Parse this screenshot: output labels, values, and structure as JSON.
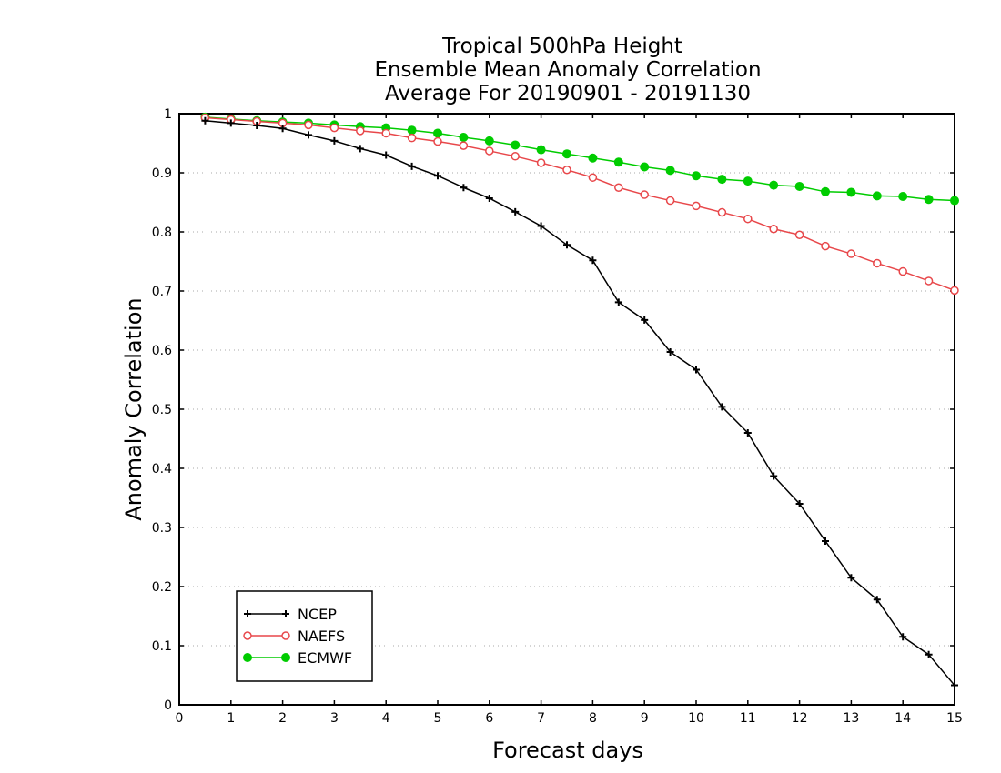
{
  "chart_data": {
    "type": "line",
    "title": [
      "Tropical 500hPa Height",
      "Ensemble Mean Anomaly Correlation",
      "Average For 20190901 - 20191130"
    ],
    "xlabel": "Forecast days",
    "ylabel": "Anomaly Correlation",
    "xlim": [
      0,
      15
    ],
    "ylim": [
      0,
      1
    ],
    "xticks": [
      "0",
      "1",
      "2",
      "3",
      "4",
      "5",
      "6",
      "7",
      "8",
      "9",
      "10",
      "11",
      "12",
      "13",
      "14",
      "15"
    ],
    "yticks": [
      "0",
      "0.1",
      "0.2",
      "0.3",
      "0.4",
      "0.5",
      "0.6",
      "0.7",
      "0.8",
      "0.9",
      "1"
    ],
    "grid": "horizontal dotted",
    "legend_position": "bottom-left",
    "x": [
      0.5,
      1,
      1.5,
      2,
      2.5,
      3,
      3.5,
      4,
      4.5,
      5,
      5.5,
      6,
      6.5,
      7,
      7.5,
      8,
      8.5,
      9,
      9.5,
      10,
      10.5,
      11,
      11.5,
      12,
      12.5,
      13,
      13.5,
      14,
      14.5,
      15
    ],
    "series": [
      {
        "name": "NCEP",
        "color": "#000000",
        "marker": "plus",
        "values": [
          0.988,
          0.984,
          0.98,
          0.975,
          0.964,
          0.954,
          0.941,
          0.93,
          0.911,
          0.895,
          0.875,
          0.857,
          0.834,
          0.81,
          0.778,
          0.752,
          0.681,
          0.651,
          0.597,
          0.567,
          0.504,
          0.46,
          0.387,
          0.34,
          0.277,
          0.215,
          0.178,
          0.115,
          0.085,
          0.033
        ]
      },
      {
        "name": "NAEFS",
        "color": "#e8474a",
        "marker": "open-circle",
        "values": [
          0.993,
          0.99,
          0.987,
          0.984,
          0.981,
          0.976,
          0.971,
          0.967,
          0.959,
          0.953,
          0.946,
          0.937,
          0.928,
          0.917,
          0.905,
          0.892,
          0.875,
          0.863,
          0.853,
          0.844,
          0.833,
          0.822,
          0.805,
          0.795,
          0.776,
          0.763,
          0.747,
          0.733,
          0.717,
          0.701
        ]
      },
      {
        "name": "ECMWF",
        "color": "#00cc00",
        "marker": "filled-circle",
        "values": [
          0.994,
          0.991,
          0.988,
          0.986,
          0.984,
          0.981,
          0.978,
          0.976,
          0.972,
          0.967,
          0.96,
          0.954,
          0.947,
          0.939,
          0.932,
          0.925,
          0.918,
          0.91,
          0.904,
          0.895,
          0.889,
          0.886,
          0.879,
          0.877,
          0.868,
          0.867,
          0.861,
          0.86,
          0.855,
          0.853
        ]
      }
    ]
  }
}
